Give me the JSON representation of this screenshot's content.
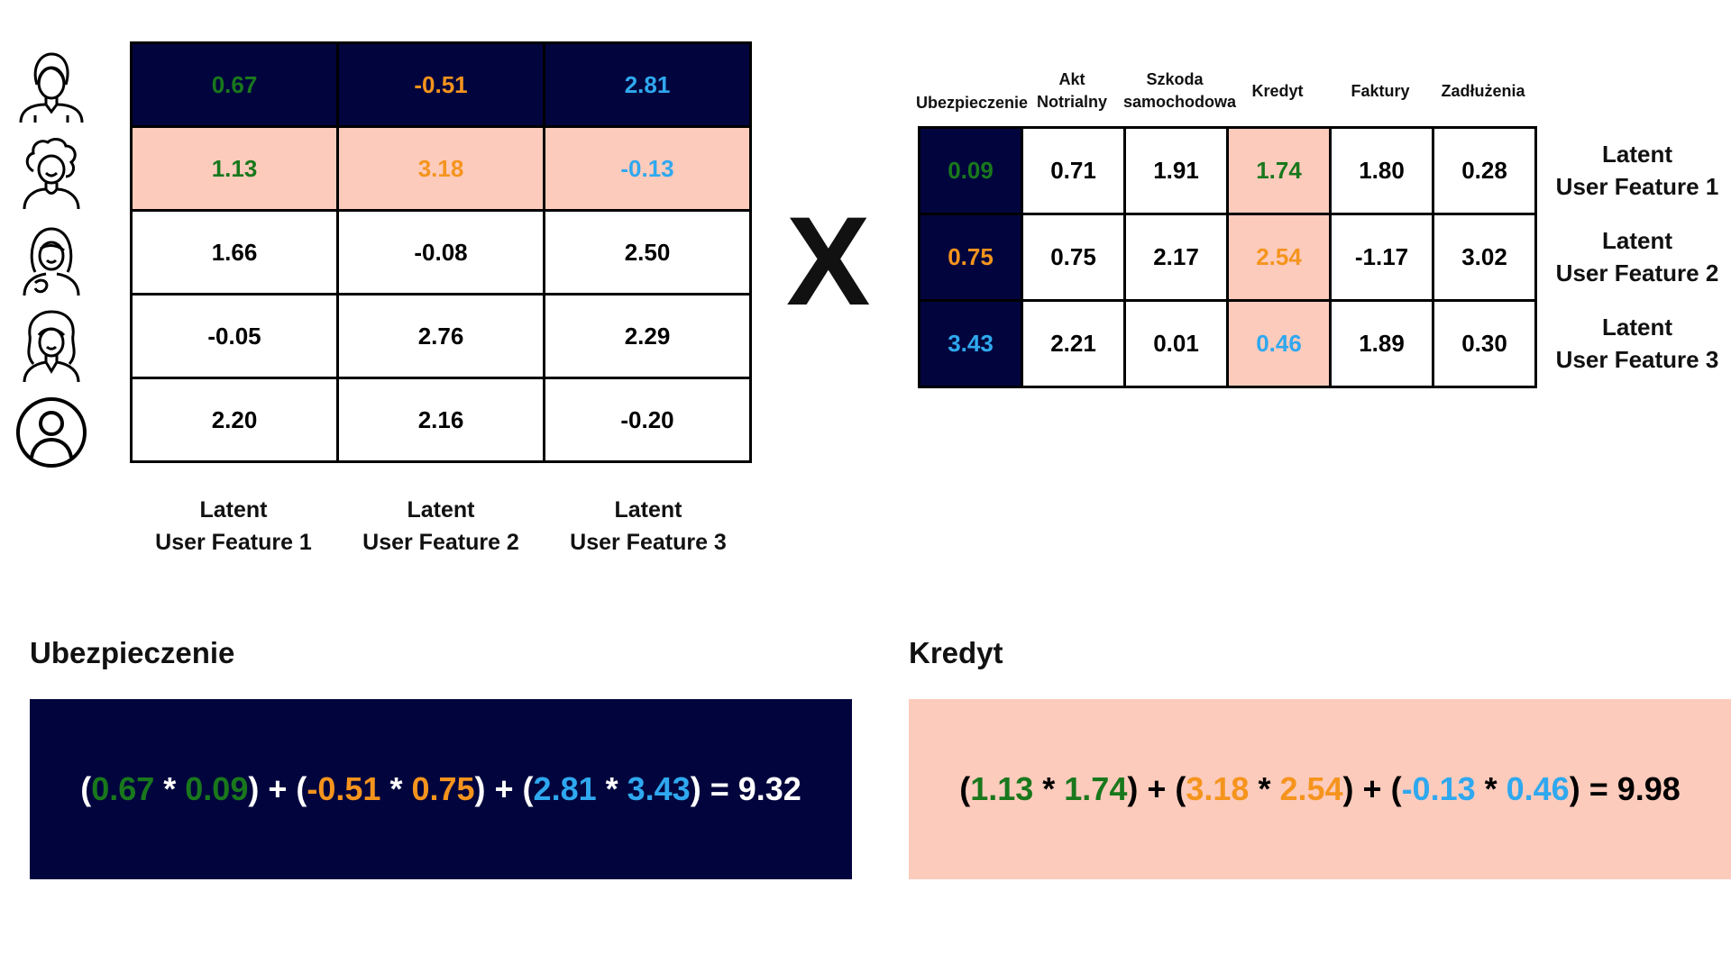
{
  "users": [
    {
      "icon": "woman-short-hair-icon"
    },
    {
      "icon": "woman-curly-hair-icon"
    },
    {
      "icon": "woman-long-hair-icon"
    },
    {
      "icon": "woman-wavy-hair-icon"
    },
    {
      "icon": "generic-user-icon"
    }
  ],
  "user_matrix": {
    "rows": [
      [
        "0.67",
        "-0.51",
        "2.81"
      ],
      [
        "1.13",
        "3.18",
        "-0.13"
      ],
      [
        "1.66",
        "-0.08",
        "2.50"
      ],
      [
        "-0.05",
        "2.76",
        "2.29"
      ],
      [
        "2.20",
        "2.16",
        "-0.20"
      ]
    ],
    "col_labels": [
      "Latent\nUser Feature 1",
      "Latent\nUser Feature 2",
      "Latent\nUser Feature 3"
    ]
  },
  "operator": "X",
  "item_matrix": {
    "col_headers": [
      "Ubezpieczenie",
      "Akt\nNotrialny",
      "Szkoda\nsamochodowa",
      "Kredyt",
      "Faktury",
      "Zadłużenia"
    ],
    "rows": [
      [
        "0.09",
        "0.71",
        "1.91",
        "1.74",
        "1.80",
        "0.28"
      ],
      [
        "0.75",
        "0.75",
        "2.17",
        "2.54",
        "-1.17",
        "3.02"
      ],
      [
        "3.43",
        "2.21",
        "0.01",
        "0.46",
        "1.89",
        "0.30"
      ]
    ],
    "row_labels": [
      "Latent\nUser Feature 1",
      "Latent\nUser Feature 2",
      "Latent\nUser Feature 3"
    ]
  },
  "examples": [
    {
      "title": "Ubezpieczenie",
      "parts": [
        {
          "t": "(",
          "c": "base"
        },
        {
          "t": "0.67",
          "c": "green"
        },
        {
          "t": " * ",
          "c": "base"
        },
        {
          "t": "0.09",
          "c": "green"
        },
        {
          "t": ") + (",
          "c": "base"
        },
        {
          "t": "-0.51",
          "c": "orange"
        },
        {
          "t": " * ",
          "c": "base"
        },
        {
          "t": "0.75",
          "c": "orange"
        },
        {
          "t": ") + (",
          "c": "base"
        },
        {
          "t": "2.81",
          "c": "blue"
        },
        {
          "t": " * ",
          "c": "base"
        },
        {
          "t": "3.43",
          "c": "blue"
        },
        {
          "t": ") = 9.32",
          "c": "base"
        }
      ]
    },
    {
      "title": "Kredyt",
      "parts": [
        {
          "t": "(",
          "c": "base"
        },
        {
          "t": "1.13",
          "c": "green"
        },
        {
          "t": " * ",
          "c": "base"
        },
        {
          "t": "1.74",
          "c": "green"
        },
        {
          "t": ") + (",
          "c": "base"
        },
        {
          "t": "3.18",
          "c": "orange"
        },
        {
          "t": " * ",
          "c": "base"
        },
        {
          "t": "2.54",
          "c": "orange"
        },
        {
          "t": ") + (",
          "c": "base"
        },
        {
          "t": "-0.13",
          "c": "blue"
        },
        {
          "t": " * ",
          "c": "base"
        },
        {
          "t": "0.46",
          "c": "blue"
        },
        {
          "t": ") = 9.98",
          "c": "base"
        }
      ]
    }
  ],
  "colors": {
    "navy": "#02053d",
    "pink": "#fdcbbc",
    "green": "#19781c",
    "orange": "#f5941d",
    "blue": "#2fa8ef"
  }
}
